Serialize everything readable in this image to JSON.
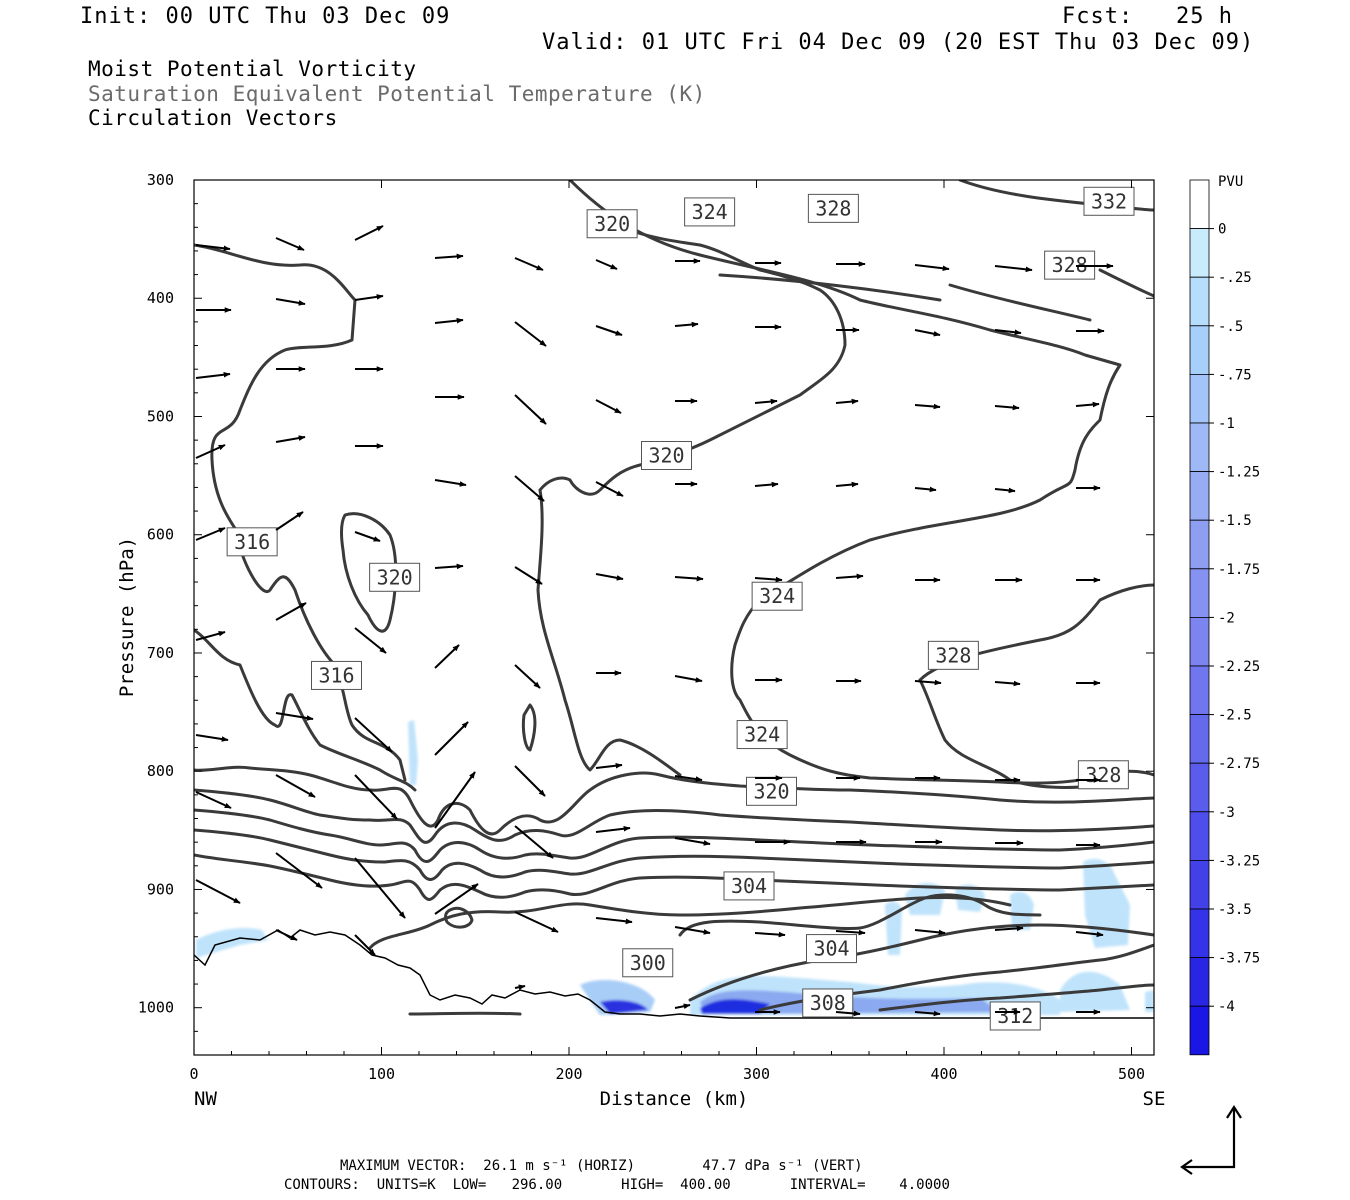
{
  "header": {
    "init": "Init: 00 UTC Thu 03 Dec 09",
    "fcst": "Fcst:   25 h",
    "valid": "Valid: 01 UTC Fri 04 Dec 09 (20 EST Thu 03 Dec 09)",
    "field1": "Moist Potential Vorticity",
    "field2": "Saturation Equivalent Potential Temperature (K)",
    "field3": "Circulation Vectors"
  },
  "footer": {
    "max_vector": "MAXIMUM VECTOR:  26.1 m s⁻¹ (HORIZ)        47.7 dPa s⁻¹ (VERT)",
    "contours": "CONTOURS:  UNITS=K  LOW=   296.00       HIGH=  400.00       INTERVAL=    4.0000"
  },
  "colors": {
    "contour": "#3a3a3a",
    "pv_light": "#bfe3fb",
    "pv_mid": "#8aa9f0",
    "pv_dark": "#1f2fe0"
  },
  "chart_data": {
    "type": "contour-cross-section",
    "xlabel": "Distance (km)",
    "ylabel": "Pressure (hPa)",
    "xlim": [
      0,
      512
    ],
    "ylim": [
      1040,
      300
    ],
    "x_ticks": [
      0,
      100,
      200,
      300,
      400,
      500
    ],
    "y_ticks": [
      300,
      400,
      500,
      600,
      700,
      800,
      900,
      1000
    ],
    "x_end_labels": {
      "left": "NW",
      "right": "SE"
    },
    "colorbar": {
      "unit": "PVU",
      "labels": [
        "0",
        "-.25",
        "-.5",
        "-.75",
        "-1",
        "-1.25",
        "-1.5",
        "-1.75",
        "-2",
        "-2.25",
        "-2.5",
        "-2.75",
        "-3",
        "-3.25",
        "-3.5",
        "-3.75",
        "-4"
      ],
      "colors": [
        "#ffffff",
        "#c9ecfd",
        "#b6ddfb",
        "#a6cff9",
        "#a2c4f8",
        "#9fb9f6",
        "#98acf4",
        "#8e9ff2",
        "#8592f1",
        "#7b84ef",
        "#7077ee",
        "#6569ec",
        "#5a5ceb",
        "#4e4eea",
        "#4241e8",
        "#3533e7",
        "#2825e5",
        "#1a16e4"
      ]
    },
    "contour_labels": [
      {
        "text": "320",
        "x": 223,
        "p": 337
      },
      {
        "text": "324",
        "x": 275,
        "p": 327
      },
      {
        "text": "328",
        "x": 341,
        "p": 324
      },
      {
        "text": "332",
        "x": 488,
        "p": 318
      },
      {
        "text": "328",
        "x": 467,
        "p": 372
      },
      {
        "text": "320",
        "x": 252,
        "p": 533
      },
      {
        "text": "316",
        "x": 31,
        "p": 606
      },
      {
        "text": "320",
        "x": 107,
        "p": 636
      },
      {
        "text": "324",
        "x": 311,
        "p": 652
      },
      {
        "text": "328",
        "x": 405,
        "p": 702
      },
      {
        "text": "316",
        "x": 76,
        "p": 719
      },
      {
        "text": "324",
        "x": 303,
        "p": 769
      },
      {
        "text": "328",
        "x": 485,
        "p": 803
      },
      {
        "text": "320",
        "x": 308,
        "p": 817
      },
      {
        "text": "304",
        "x": 296,
        "p": 897
      },
      {
        "text": "304",
        "x": 340,
        "p": 950
      },
      {
        "text": "300",
        "x": 242,
        "p": 962
      },
      {
        "text": "308",
        "x": 338,
        "p": 996
      },
      {
        "text": "312",
        "x": 438,
        "p": 1007
      }
    ]
  }
}
